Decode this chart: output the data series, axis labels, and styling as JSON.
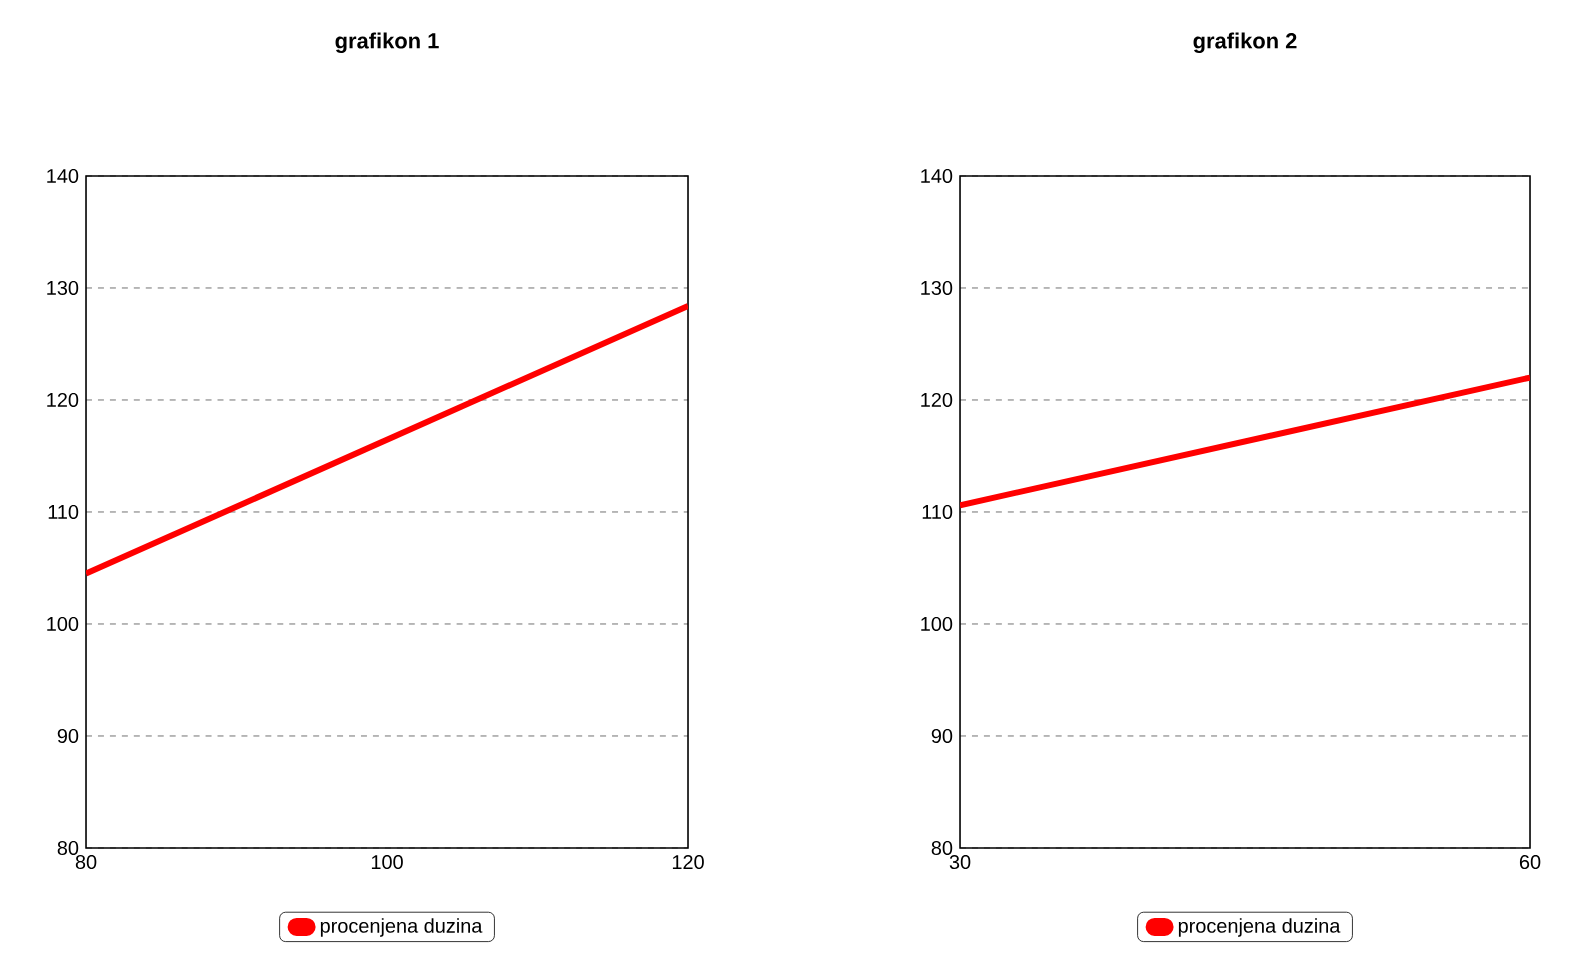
{
  "chart_data": [
    {
      "type": "line",
      "title": "grafikon 1",
      "x": [
        80,
        120
      ],
      "xlim": [
        80,
        120
      ],
      "ylim": [
        80,
        140
      ],
      "xticks": [
        80,
        100,
        120
      ],
      "yticks": [
        80,
        90,
        100,
        110,
        120,
        130,
        140
      ],
      "grid": "y",
      "legend": "bottom",
      "series": [
        {
          "name": "procenjena duzina",
          "color": "#ff0000",
          "values": [
            104.5,
            128.4
          ]
        }
      ]
    },
    {
      "type": "line",
      "title": "grafikon 2",
      "x": [
        30,
        60
      ],
      "xlim": [
        30,
        60
      ],
      "ylim": [
        80,
        140
      ],
      "xticks": [
        30,
        60
      ],
      "yticks": [
        80,
        90,
        100,
        110,
        120,
        130,
        140
      ],
      "grid": "y",
      "legend": "bottom",
      "series": [
        {
          "name": "procenjena duzina",
          "color": "#ff0000",
          "values": [
            110.6,
            122.0
          ]
        }
      ]
    }
  ]
}
